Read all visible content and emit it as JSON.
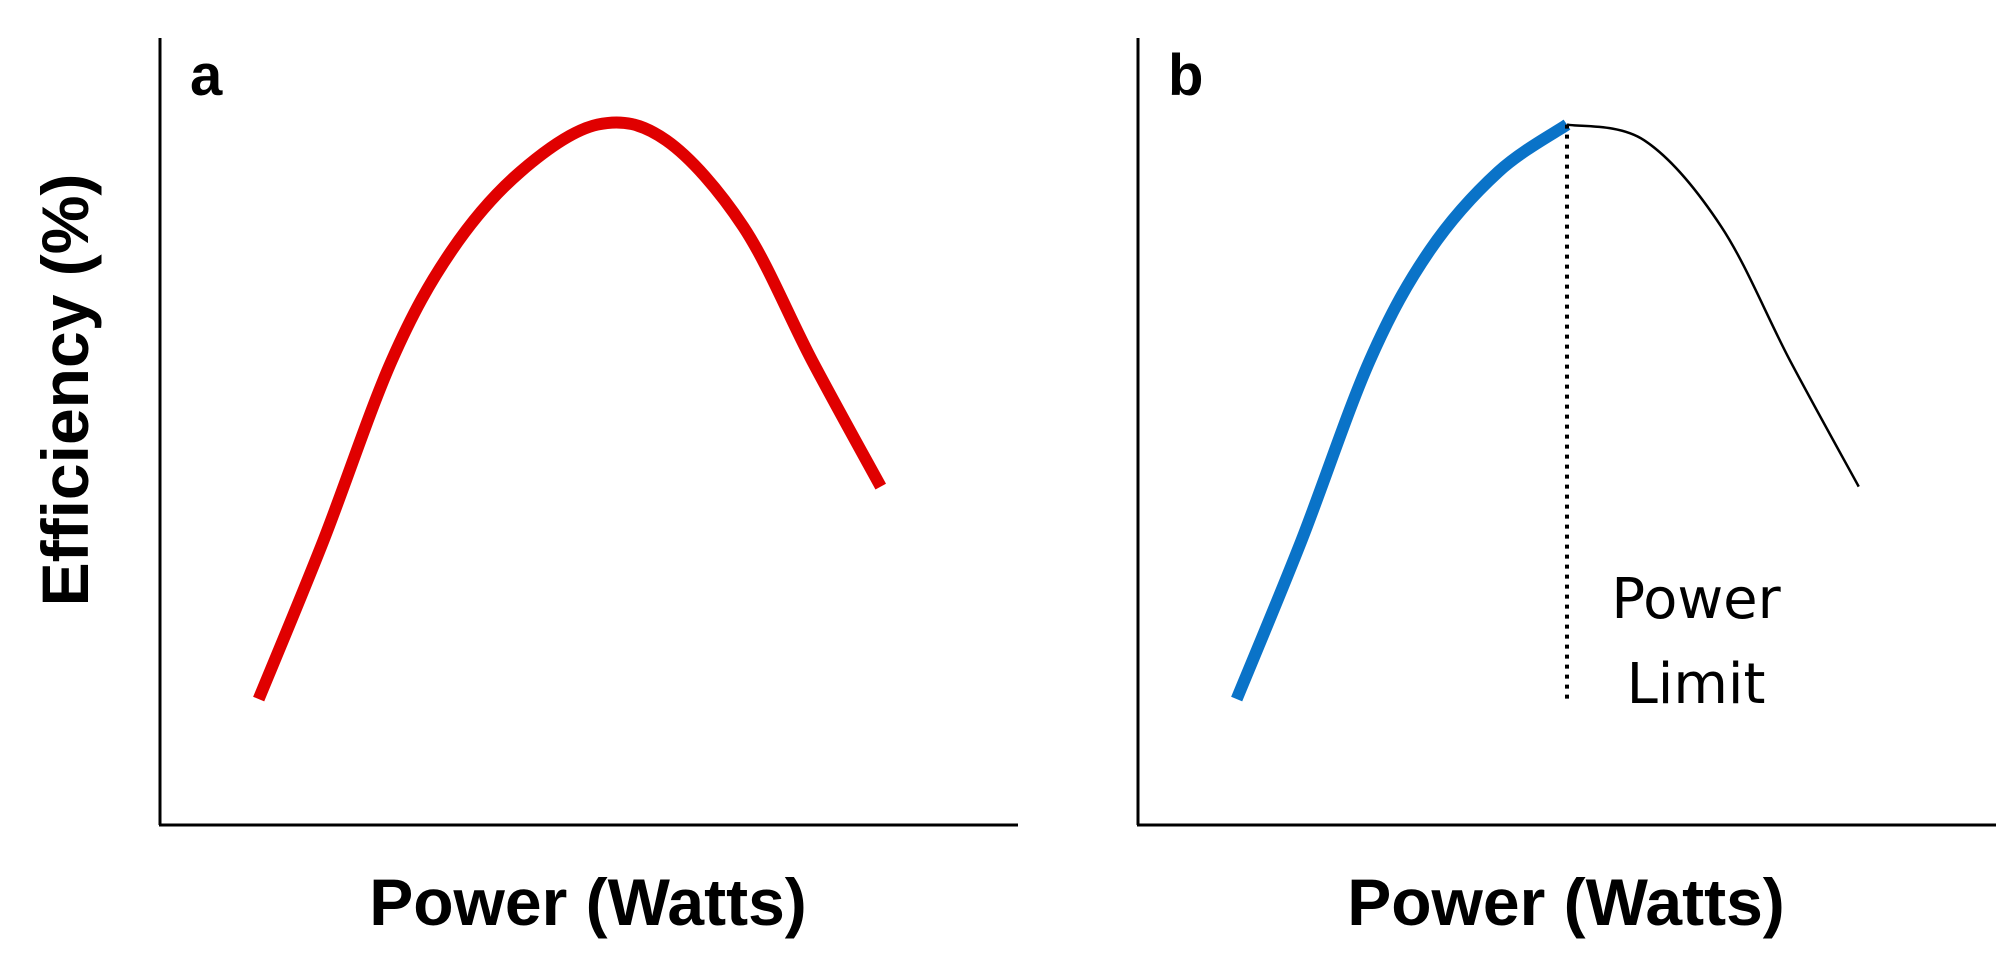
{
  "colors": {
    "panel_a_curve": "#e00000",
    "panel_b_curve": "#0a73c8",
    "panel_b_continuation": "#000000",
    "axes": "#000000"
  },
  "chart_data": [
    {
      "type": "line",
      "panel_label": "a",
      "xlabel": "Power (Watts)",
      "ylabel": "Efficiency (%)",
      "xlim": [
        0,
        10
      ],
      "ylim": [
        0,
        10
      ],
      "grid": false,
      "series": [
        {
          "color": "#e00000",
          "style": "thick-solid",
          "x": [
            1.15,
            1.9,
            2.7,
            3.4,
            4.2,
            5.1,
            5.9,
            6.8,
            7.6,
            8.4
          ],
          "y": [
            1.6,
            3.6,
            5.9,
            7.3,
            8.3,
            8.9,
            8.7,
            7.6,
            5.9,
            4.3
          ]
        }
      ]
    },
    {
      "type": "line",
      "panel_label": "b",
      "xlabel": "Power (Watts)",
      "grid": false,
      "xlim": [
        0,
        10
      ],
      "ylim": [
        0,
        10
      ],
      "series": [
        {
          "color": "#0a73c8",
          "style": "thick-solid",
          "x": [
            1.15,
            1.9,
            2.7,
            3.4,
            4.2,
            5.0
          ],
          "y": [
            1.6,
            3.6,
            5.9,
            7.3,
            8.3,
            8.9
          ]
        },
        {
          "color": "#000000",
          "style": "thin-solid",
          "x": [
            5.0,
            5.9,
            6.8,
            7.6,
            8.4
          ],
          "y": [
            8.9,
            8.7,
            7.6,
            5.9,
            4.3
          ]
        }
      ],
      "annotations": [
        {
          "type": "vertical-dotted-line",
          "x": 5.0,
          "y_from": 1.6,
          "y_to": 8.9
        },
        {
          "type": "text",
          "lines": [
            "Power",
            "Limit"
          ]
        }
      ]
    }
  ]
}
